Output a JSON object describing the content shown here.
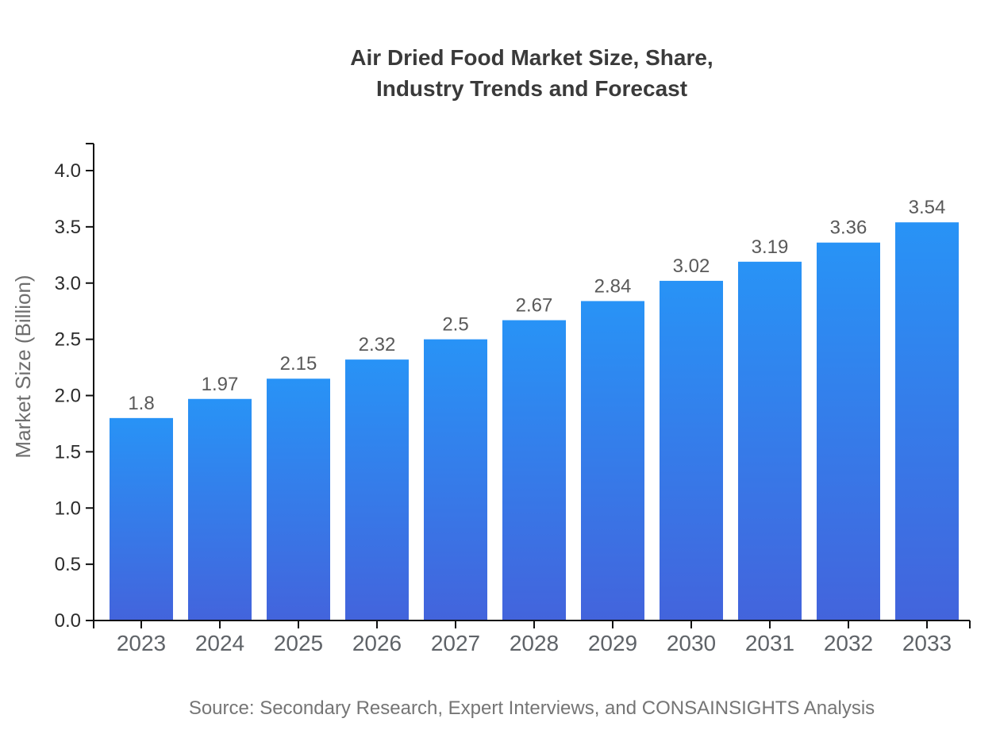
{
  "title": {
    "line1": "Air Dried Food Market Size, Share,",
    "line2": "Industry Trends and Forecast"
  },
  "source": "Source: Secondary Research, Expert Interviews, and CONSAINSIGHTS Analysis",
  "chart_data": {
    "type": "bar",
    "title": "Air Dried Food Market Size, Share, Industry Trends and Forecast",
    "categories": [
      "2023",
      "2024",
      "2025",
      "2026",
      "2027",
      "2028",
      "2029",
      "2030",
      "2031",
      "2032",
      "2033"
    ],
    "values": [
      1.8,
      1.97,
      2.15,
      2.32,
      2.5,
      2.67,
      2.84,
      3.02,
      3.19,
      3.36,
      3.54
    ],
    "value_labels": [
      "1.8",
      "1.97",
      "2.15",
      "2.32",
      "2.5",
      "2.67",
      "2.84",
      "3.02",
      "3.19",
      "3.36",
      "3.54"
    ],
    "xlabel": "",
    "ylabel": "Market Size (Billion)",
    "ylim": [
      0,
      4.24
    ],
    "yticks": [
      0,
      0.5,
      1,
      1.5,
      2,
      2.5,
      3,
      3.5,
      4
    ],
    "grid": false,
    "legend": null,
    "gradient": {
      "top": "#2893F6",
      "bottom": "#4364DC"
    }
  },
  "colors": {
    "bar_gradient_top": "#2893F6",
    "bar_gradient_bottom": "#4364DC",
    "axis": "#111111",
    "title_text": "#3a3a3a",
    "x_tick_label": "#5f6368",
    "y_tick_label": "#2b2b2b",
    "value_label": "#595959",
    "axis_title": "#6e6e6e",
    "source_text": "#757575",
    "background": "#ffffff"
  }
}
